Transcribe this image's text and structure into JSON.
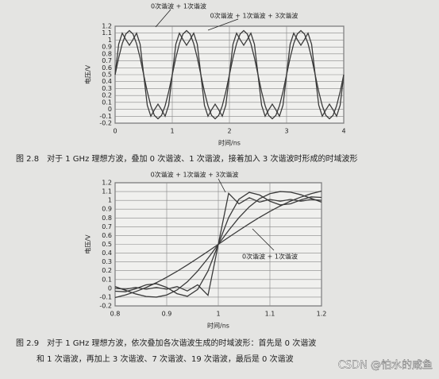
{
  "chart_data": [
    {
      "type": "line",
      "x": [
        0,
        0.0625,
        0.125,
        0.1875,
        0.25,
        0.3125,
        0.375,
        0.4375,
        0.5,
        0.5625,
        0.625,
        0.6875,
        0.75,
        0.8125,
        0.875,
        0.9375,
        1,
        1.0625,
        1.125,
        1.1875,
        1.25,
        1.3125,
        1.375,
        1.4375,
        1.5,
        1.5625,
        1.625,
        1.6875,
        1.75,
        1.8125,
        1.875,
        1.9375,
        2,
        2.0625,
        2.125,
        2.1875,
        2.25,
        2.3125,
        2.375,
        2.4375,
        2.5,
        2.5625,
        2.625,
        2.6875,
        2.75,
        2.8125,
        2.875,
        2.9375,
        3,
        3.0625,
        3.125,
        3.1875,
        3.25,
        3.3125,
        3.375,
        3.4375,
        3.5,
        3.5625,
        3.625,
        3.6875,
        3.75,
        3.8125,
        3.875,
        3.9375,
        4
      ],
      "series": [
        {
          "name": "0次谐波 + 1次谐波",
          "color": "#3a3a3a",
          "values": [
            0.5,
            0.744,
            0.95,
            1.088,
            1.137,
            1.088,
            0.95,
            0.744,
            0.5,
            0.256,
            0.05,
            -0.088,
            -0.137,
            -0.088,
            0.05,
            0.256,
            0.5,
            0.744,
            0.95,
            1.088,
            1.137,
            1.088,
            0.95,
            0.744,
            0.5,
            0.256,
            0.05,
            -0.088,
            -0.137,
            -0.088,
            0.05,
            0.256,
            0.5,
            0.744,
            0.95,
            1.088,
            1.137,
            1.088,
            0.95,
            0.744,
            0.5,
            0.256,
            0.05,
            -0.088,
            -0.137,
            -0.088,
            0.05,
            0.256,
            0.5,
            0.744,
            0.95,
            1.088,
            1.137,
            1.088,
            0.95,
            0.744,
            0.5,
            0.256,
            0.05,
            -0.088,
            -0.137,
            -0.088,
            0.05,
            0.256,
            0.5
          ]
        },
        {
          "name": "0次谐波 + 1次谐波 + 3次谐波",
          "color": "#3a3a3a",
          "values": [
            0.5,
            0.94,
            1.1,
            1.007,
            0.925,
            1.007,
            1.1,
            0.94,
            0.5,
            0.06,
            -0.1,
            -0.007,
            0.075,
            -0.007,
            -0.1,
            0.06,
            0.5,
            0.94,
            1.1,
            1.007,
            0.925,
            1.007,
            1.1,
            0.94,
            0.5,
            0.06,
            -0.1,
            -0.007,
            0.075,
            -0.007,
            -0.1,
            0.06,
            0.5,
            0.94,
            1.1,
            1.007,
            0.925,
            1.007,
            1.1,
            0.94,
            0.5,
            0.06,
            -0.1,
            -0.007,
            0.075,
            -0.007,
            -0.1,
            0.06,
            0.5,
            0.94,
            1.1,
            1.007,
            0.925,
            1.007,
            1.1,
            0.94,
            0.5,
            0.06,
            -0.1,
            -0.007,
            0.075,
            -0.007,
            -0.1,
            0.06,
            0.5
          ]
        }
      ],
      "xlabel": "时间/ns",
      "ylabel": "电压/V",
      "xlim": [
        0,
        4
      ],
      "xticks": [
        0,
        1,
        2,
        3,
        4
      ],
      "ylim": [
        -0.2,
        1.2
      ],
      "yticks": [
        -0.2,
        -0.1,
        0,
        0.1,
        0.2,
        0.3,
        0.4,
        0.5,
        0.6,
        0.7,
        0.8,
        0.9,
        1,
        1.1,
        1.2
      ],
      "grid": true
    },
    {
      "type": "line",
      "x": [
        0.8,
        0.82,
        0.84,
        0.86,
        0.88,
        0.9,
        0.92,
        0.94,
        0.96,
        0.98,
        1,
        1.02,
        1.04,
        1.06,
        1.08,
        1.1,
        1.12,
        1.14,
        1.16,
        1.18,
        1.2
      ],
      "series": [
        {
          "name": "0次谐波 + 1次谐波",
          "color": "#3a3a3a",
          "values": [
            -0.105,
            -0.076,
            -0.037,
            0.009,
            0.064,
            0.126,
            0.193,
            0.266,
            0.342,
            0.42,
            0.5,
            0.58,
            0.658,
            0.734,
            0.807,
            0.874,
            0.936,
            0.991,
            1.037,
            1.076,
            1.105
          ]
        },
        {
          "name": "0次谐波 + 1次谐波 + 3次谐波",
          "color": "#3a3a3a",
          "values": [
            0.02,
            -0.023,
            -0.064,
            -0.093,
            -0.1,
            -0.076,
            -0.019,
            0.074,
            0.197,
            0.342,
            0.5,
            0.658,
            0.803,
            0.926,
            1.019,
            1.076,
            1.1,
            1.093,
            1.064,
            1.023,
            0.98
          ]
        },
        {
          "color": "#3a3a3a",
          "values": [
            -0.033,
            -0.039,
            -0.005,
            0.039,
            0.052,
            0.01,
            -0.061,
            -0.091,
            -0.013,
            0.197,
            0.5,
            0.803,
            1.013,
            1.091,
            1.061,
            0.99,
            0.948,
            0.961,
            1.005,
            1.039,
            1.033
          ]
        },
        {
          "color": "#3a3a3a",
          "values": [
            0,
            -0.01,
            0.01,
            -0.01,
            0.01,
            -0.01,
            0.02,
            -0.03,
            0.04,
            -0.08,
            0.5,
            1.08,
            0.96,
            1.03,
            0.98,
            1.01,
            0.99,
            1.01,
            0.99,
            1.01,
            1
          ]
        }
      ],
      "xlabel": "时间/ns",
      "ylabel": "电压/V",
      "xlim": [
        0.8,
        1.2
      ],
      "xticks": [
        0.8,
        0.9,
        1,
        1.1,
        1.2
      ],
      "ylim": [
        -0.2,
        1.2
      ],
      "yticks": [
        -0.2,
        -0.1,
        0,
        0.1,
        0.2,
        0.3,
        0.4,
        0.5,
        0.6,
        0.7,
        0.8,
        0.9,
        1,
        1.1,
        1.2
      ],
      "grid": true
    }
  ],
  "captions": [
    "图 2.8　对于 1 GHz 理想方波，叠加 0 次谐波、1 次谐波，接着加入 3 次谐波时形成的时域波形",
    "图 2.9　对于 1 GHz 理想方波，依次叠加各次谐波生成的时域波形：首先是 0 次谐波",
    "和 1 次谐波，再加上 3 次谐波、7 次谐波、19 次谐波，最后是 0 次谐波"
  ],
  "watermark": "CSDN @怕水的咸鱼"
}
